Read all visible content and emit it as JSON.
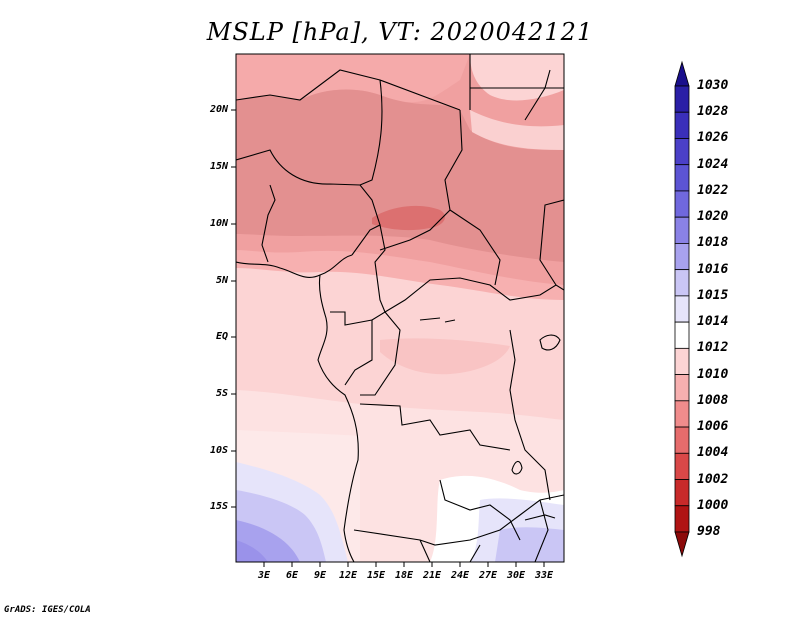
{
  "title": "MSLP [hPa], VT: 2020042121",
  "footer": "GrADS: IGES/COLA",
  "map": {
    "lat_labels": [
      "20N",
      "15N",
      "10N",
      "5N",
      "EQ",
      "5S",
      "10S",
      "15S"
    ],
    "lon_labels": [
      "3E",
      "6E",
      "9E",
      "12E",
      "15E",
      "18E",
      "21E",
      "24E",
      "27E",
      "30E",
      "33E"
    ]
  },
  "colorbar": {
    "labels": [
      "1030",
      "1028",
      "1026",
      "1024",
      "1022",
      "1020",
      "1018",
      "1016",
      "1015",
      "1014",
      "1012",
      "1010",
      "1008",
      "1006",
      "1004",
      "1002",
      "1000",
      "998"
    ],
    "colors": [
      "#1a0f8c",
      "#2a1fa6",
      "#3a2fba",
      "#4b40c8",
      "#5c54d4",
      "#7068de",
      "#8a82e6",
      "#a8a2ee",
      "#cac6f5",
      "#e6e4fa",
      "#ffffff",
      "#fcd4d4",
      "#f7b0b0",
      "#f08c8c",
      "#e66c6c",
      "#d94848",
      "#c82a2a",
      "#b01414",
      "#8c0a0a"
    ]
  },
  "colors": {
    "land_north": "#e39494",
    "land_mid": "#f0a8a8",
    "band_1010": "#f7b5b5",
    "band_1012": "#fcd4d4",
    "band_1014": "#fde9e9",
    "band_1015": "#e6e4fa",
    "band_1016": "#cac6f5",
    "band_1018": "#a8a2ee",
    "min_1006": "#e07878",
    "borders": "#000000"
  }
}
